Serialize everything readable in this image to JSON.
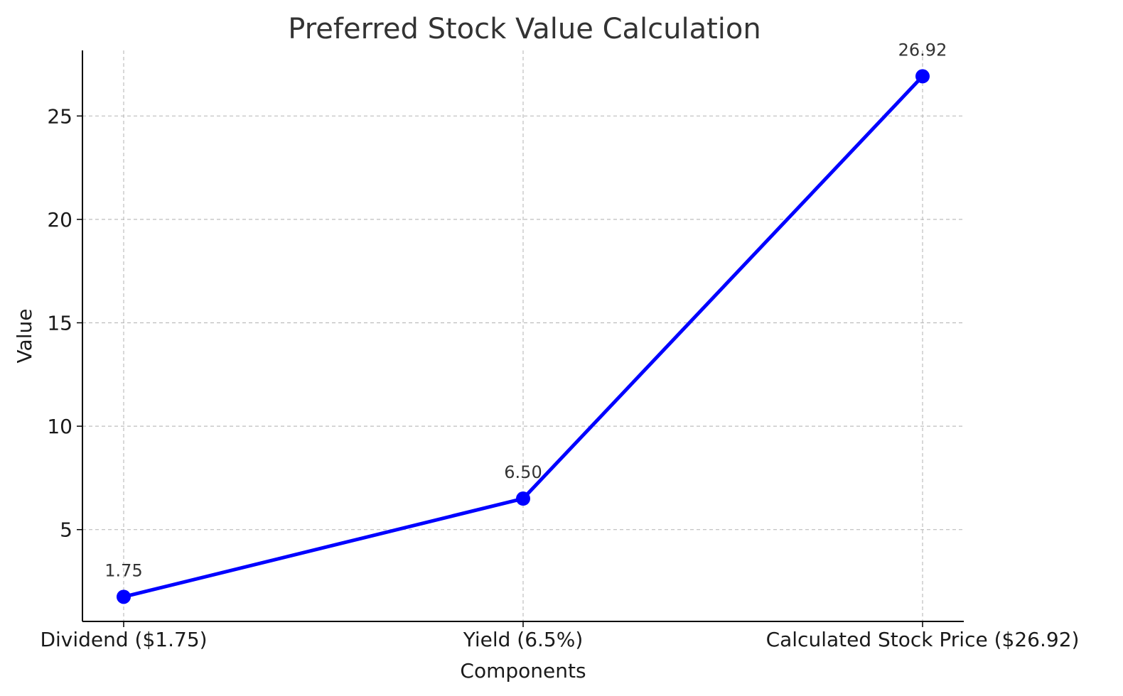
{
  "chart_data": {
    "type": "line",
    "title": "Preferred Stock Value Calculation",
    "xlabel": "Components",
    "ylabel": "Value",
    "categories": [
      "Dividend ($1.75)",
      "Yield (6.5%)",
      "Calculated Stock Price ($26.92)"
    ],
    "values": [
      1.75,
      6.5,
      26.92
    ],
    "data_labels": [
      "1.75",
      "6.50",
      "26.92"
    ],
    "yticks": [
      5,
      10,
      15,
      20,
      25
    ],
    "ylim": [
      0.56,
      28.17
    ],
    "grid": true,
    "line_color": "#0000ff",
    "marker": "circle"
  }
}
